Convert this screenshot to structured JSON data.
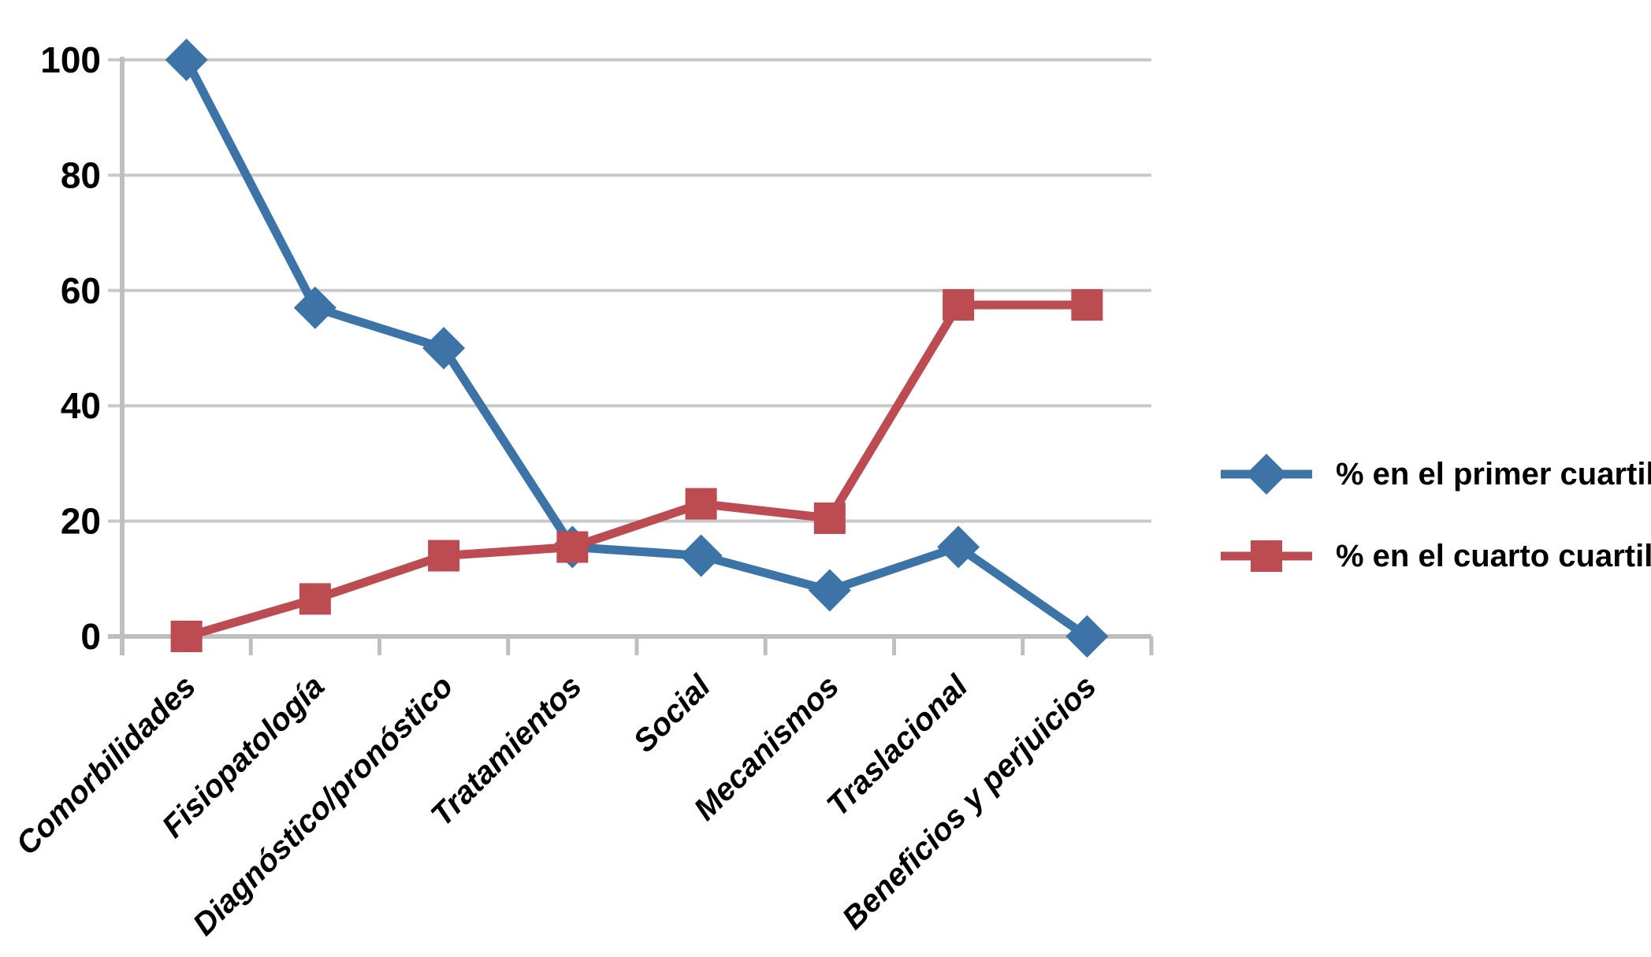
{
  "chart_data": {
    "type": "line",
    "categories": [
      "Comorbilidades",
      "Fisiopatología",
      "Diagnóstico/pronóstico",
      "Tratamientos",
      "Social",
      "Mecanismos",
      "Traslacional",
      "Beneficios y perjuicios"
    ],
    "series": [
      {
        "name": "% en el primer cuartil",
        "marker": "diamond",
        "color": "#3D74A8",
        "values": [
          100,
          57,
          50,
          15.5,
          14,
          8,
          15.5,
          0
        ]
      },
      {
        "name": "% en el cuarto cuartil",
        "marker": "square",
        "color": "#BC4B52",
        "values": [
          0,
          6.5,
          14,
          15.5,
          23,
          20.5,
          57.5,
          57.5
        ]
      }
    ],
    "title": "",
    "xlabel": "",
    "ylabel": "",
    "ylim": [
      0,
      100
    ],
    "y_ticks": [
      0,
      20,
      40,
      60,
      80,
      100
    ],
    "grid": "horizontal",
    "legend_position": "right"
  },
  "colors": {
    "gridline": "#C9C9C9",
    "axis": "#BFBFBF",
    "text": "#000000",
    "background": "#FFFFFF"
  }
}
